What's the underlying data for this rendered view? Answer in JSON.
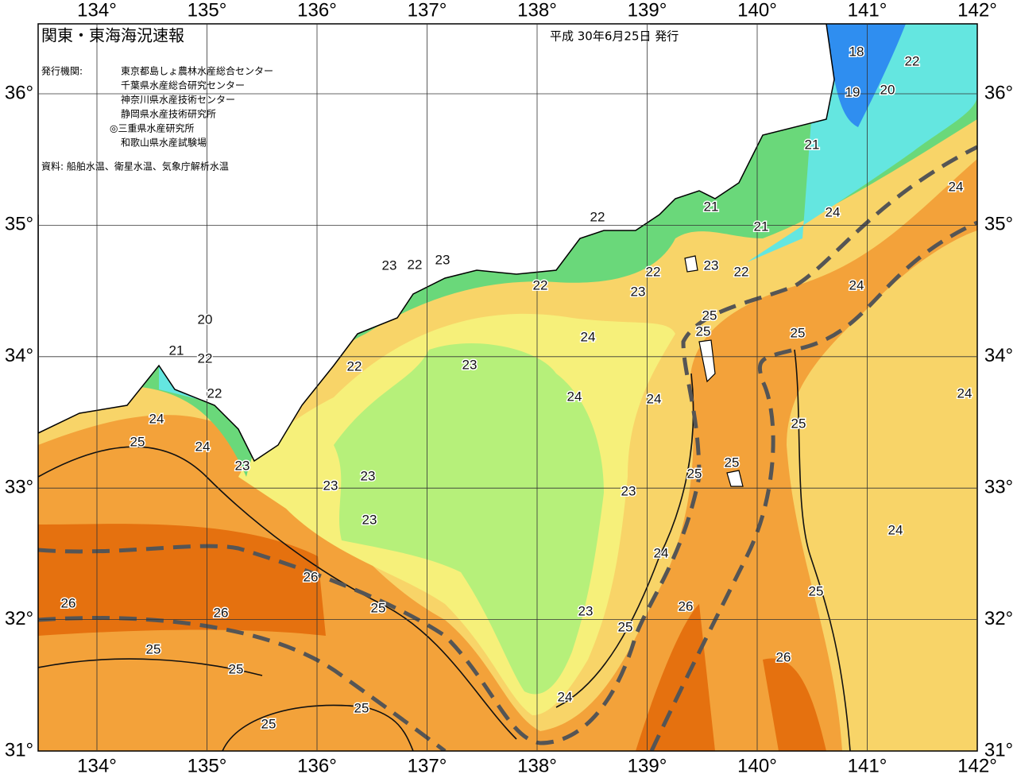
{
  "header": {
    "title": "関東・東海海況速報",
    "date": "平成 30年6月25日 発行"
  },
  "issuers": {
    "label": "発行機関:",
    "names": [
      "東京都島しょ農林水産総合センター",
      "千葉県水産総合研究センター",
      "神奈川県水産技術センター",
      "静岡県水産技術研究所",
      "◎三重県水産研究所",
      "和歌山県水産試験場"
    ]
  },
  "sources": "資料: 船舶水温、衛星水温、気象庁解析水温",
  "longitude": [
    {
      "value": 134,
      "label": "134°"
    },
    {
      "value": 135,
      "label": "135°"
    },
    {
      "value": 136,
      "label": "136°"
    },
    {
      "value": 137,
      "label": "137°"
    },
    {
      "value": 138,
      "label": "138°"
    },
    {
      "value": 139,
      "label": "139°"
    },
    {
      "value": 140,
      "label": "140°"
    },
    {
      "value": 141,
      "label": "141°"
    },
    {
      "value": 142,
      "label": "142°"
    }
  ],
  "latitude": [
    {
      "value": 31,
      "label": "31°"
    },
    {
      "value": 32,
      "label": "32°"
    },
    {
      "value": 33,
      "label": "33°"
    },
    {
      "value": 34,
      "label": "34°"
    },
    {
      "value": 35,
      "label": "35°"
    },
    {
      "value": 36,
      "label": "36°"
    }
  ],
  "contour_labels": [
    18,
    22,
    19,
    20,
    21,
    24,
    21,
    22,
    24,
    21,
    23,
    22,
    23,
    23,
    22,
    22,
    22,
    23,
    24,
    20,
    25,
    25,
    25,
    24,
    21,
    22,
    22,
    23,
    24,
    22,
    24,
    24,
    24,
    25,
    25,
    24,
    23,
    25,
    25,
    23,
    23,
    23,
    23,
    24,
    24,
    26,
    25,
    26,
    26,
    25,
    26,
    23,
    25,
    25,
    25,
    26,
    24,
    25,
    25
  ]
}
